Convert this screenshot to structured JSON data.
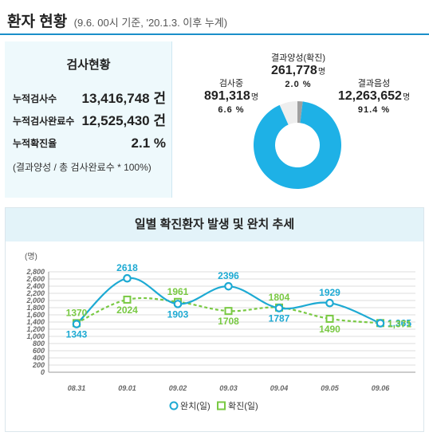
{
  "header": {
    "title": "환자 현황",
    "subtitle": "(9.6. 00시 기준, '20.1.3. 이후 누계)"
  },
  "test_status": {
    "title": "검사현황",
    "rows": [
      {
        "label": "누적검사수",
        "value": "13,416,748 건"
      },
      {
        "label": "누적검사완료수",
        "value": "12,525,430 건"
      },
      {
        "label": "누적확진율",
        "value": "2.1 %"
      }
    ],
    "note": "(결과양성 / 총 검사완료수 * 100%)"
  },
  "test_results": {
    "unit": "명",
    "positive": {
      "label": "결과양성(확진)",
      "value": "261,778",
      "pct": "2.0 %",
      "color": "#a0a0a0"
    },
    "testing": {
      "label": "검사중",
      "value": "891,318",
      "pct": "6.6 %",
      "color": "#eeeeee"
    },
    "negative": {
      "label": "결과음성",
      "value": "12,263,652",
      "pct": "91.4 %",
      "color": "#1eb1e6"
    }
  },
  "chart_data": {
    "type": "line",
    "title": "일별 확진환자 발생 및 완치 추세",
    "ylabel": "(명)",
    "ylim": [
      0,
      2800
    ],
    "yticks": [
      0,
      200,
      400,
      600,
      800,
      1000,
      1200,
      1400,
      1600,
      1800,
      2000,
      2200,
      2400,
      2600,
      2800
    ],
    "ytick_labels": [
      "0",
      "200",
      "400",
      "600",
      "800",
      "1,000",
      "1,200",
      "1,400",
      "1,600",
      "1,800",
      "2,000",
      "2,200",
      "2,400",
      "2,600",
      "2,800"
    ],
    "grid": true,
    "legend": "bottom",
    "categories": [
      "08.31",
      "09.01",
      "09.02",
      "09.03",
      "09.04",
      "09.05",
      "09.06"
    ],
    "series": [
      {
        "name": "완치(일)",
        "color": "#1eaad3",
        "style": "solid",
        "marker": "circle",
        "values": [
          1343,
          2618,
          1903,
          2396,
          1787,
          1929,
          1365
        ],
        "labels": [
          "1343",
          "2618",
          "1903",
          "2396",
          "1787",
          "1929",
          "1,365"
        ]
      },
      {
        "name": "확진(일)",
        "color": "#79c943",
        "style": "dashed",
        "marker": "square",
        "values": [
          1370,
          2024,
          1961,
          1708,
          1804,
          1490,
          1371
        ],
        "labels": [
          "1370",
          "2024",
          "1961",
          "1708",
          "1804",
          "1490",
          "1,371"
        ]
      }
    ]
  }
}
